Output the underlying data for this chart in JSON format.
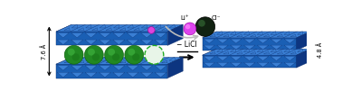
{
  "bg_color": "#ffffff",
  "blue_main": "#1a5fb4",
  "blue_dark": "#0a2d6e",
  "blue_top": "#3a7fd4",
  "blue_right": "#0d3580",
  "green_dark": "#116611",
  "green_mid": "#228822",
  "green_light": "#44bb44",
  "magenta": "#dd44dd",
  "magenta_dark": "#991199",
  "cl_ball": "#113311",
  "cl_hi": "#336633",
  "arrow_gray": "#aaaaaa",
  "dim_76": "7.6 Å",
  "dim_48": "4.8 Å",
  "minus_licl": "− LiCl",
  "li_label": "Li⁺",
  "cl_label": "Cl⁻",
  "figsize": [
    3.78,
    1.12
  ],
  "dpi": 100
}
